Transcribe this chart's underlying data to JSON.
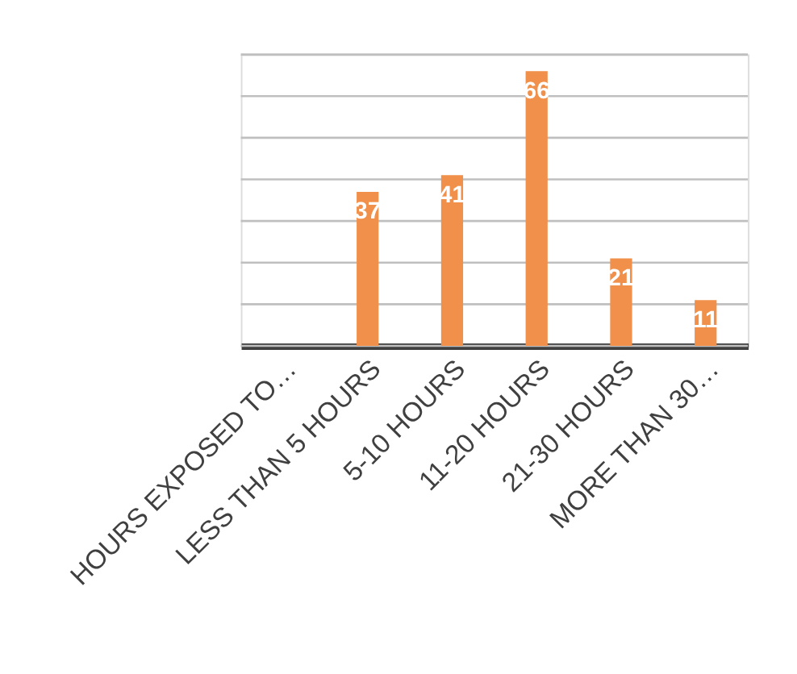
{
  "chart_data": {
    "type": "bar",
    "categories": [
      "HOURS EXPOSED TO…",
      "LESS THAN 5 HOURS",
      "5-10 HOURS",
      "11-20 HOURS",
      "21-30 HOURS",
      "MORE THAN 30…"
    ],
    "values": [
      null,
      37,
      41,
      66,
      21,
      11
    ],
    "color": "#f0904a",
    "ylim": [
      0,
      70
    ],
    "yticks": [
      {
        "value": 0,
        "label": null
      },
      {
        "value": 10,
        "label": null
      },
      {
        "value": 20,
        "label": null
      },
      {
        "value": 30,
        "label": null
      },
      {
        "value": 40,
        "label": null
      },
      {
        "value": 50,
        "label": null
      },
      {
        "value": 60,
        "label": null
      },
      {
        "value": 70,
        "label": null
      }
    ],
    "grid": "y",
    "tick_labels": "x",
    "data_labels": true
  }
}
